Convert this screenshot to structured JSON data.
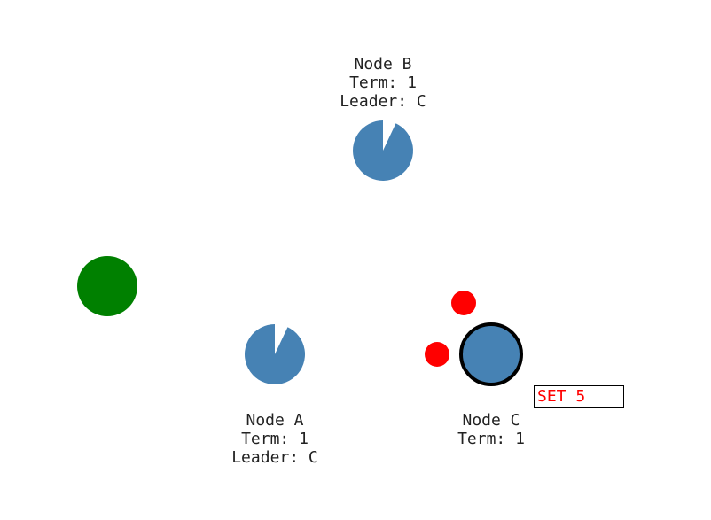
{
  "nodes": {
    "b": {
      "name": "Node B",
      "term": "Term: 1",
      "leader": "Leader: C",
      "color": "#4682b4",
      "timeout_remaining": 0.93
    },
    "a": {
      "name": "Node A",
      "term": "Term: 1",
      "leader": "Leader: C",
      "color": "#4682b4",
      "timeout_remaining": 0.93
    },
    "c": {
      "name": "Node C",
      "term": "Term: 1",
      "color": "#4682b4",
      "is_leader": true
    }
  },
  "client": {
    "color": "#008000"
  },
  "messages": {
    "color": "#ff0000",
    "count": 2
  },
  "command": {
    "text": "SET 5",
    "color": "#ff0000"
  }
}
